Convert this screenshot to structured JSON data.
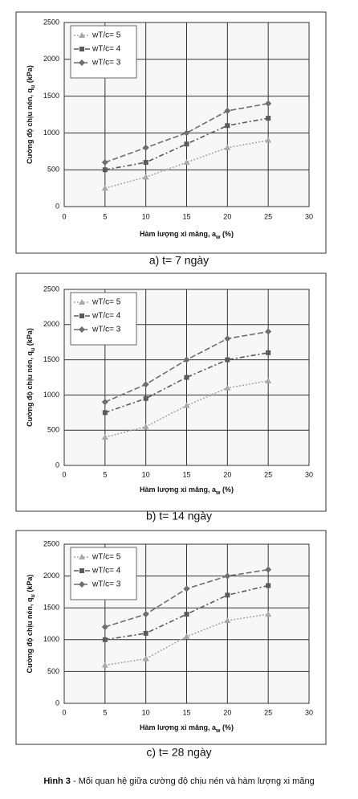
{
  "chart_data": [
    {
      "type": "line",
      "caption": "a) t= 7 ngày",
      "x_label": {
        "text": "Hàm lượng xi măng, a",
        "sub": "w",
        "suffix": " (%)"
      },
      "y_label": {
        "text": "Cường độ chịu nén, q",
        "sub": "u",
        "suffix": " (kPa)"
      },
      "x": [
        5,
        10,
        15,
        20,
        25
      ],
      "series": [
        {
          "name": "wT/c= 5",
          "color": "#a8a8a8",
          "values": [
            250,
            400,
            600,
            800,
            900
          ]
        },
        {
          "name": "wT/c= 4",
          "color": "#5a5a5a",
          "values": [
            500,
            600,
            850,
            1100,
            1200
          ]
        },
        {
          "name": "wT/c= 3",
          "color": "#6e6e6e",
          "values": [
            600,
            800,
            1000,
            1300,
            1400
          ]
        }
      ],
      "xlim": [
        0,
        30
      ],
      "xticks": [
        0,
        5,
        10,
        15,
        20,
        25,
        30
      ],
      "ylim": [
        0,
        2500
      ],
      "yticks": [
        0,
        500,
        1000,
        1500,
        2000,
        2500
      ],
      "grid": true,
      "legend": "upper left"
    },
    {
      "type": "line",
      "caption": "b) t= 14 ngày",
      "x_label": {
        "text": "Hàm lượng xi măng, a",
        "sub": "w",
        "suffix": " (%)"
      },
      "y_label": {
        "text": "Cường độ chịu nén, q",
        "sub": "u",
        "suffix": " (kPa)"
      },
      "x": [
        5,
        10,
        15,
        20,
        25
      ],
      "series": [
        {
          "name": "wT/c= 5",
          "color": "#a8a8a8",
          "values": [
            400,
            550,
            850,
            1100,
            1200
          ]
        },
        {
          "name": "wT/c= 4",
          "color": "#5a5a5a",
          "values": [
            750,
            950,
            1250,
            1500,
            1600
          ]
        },
        {
          "name": "wT/c= 3",
          "color": "#6e6e6e",
          "values": [
            900,
            1150,
            1500,
            1800,
            1900
          ]
        }
      ],
      "xlim": [
        0,
        30
      ],
      "xticks": [
        0,
        5,
        10,
        15,
        20,
        25,
        30
      ],
      "ylim": [
        0,
        2500
      ],
      "yticks": [
        0,
        500,
        1000,
        1500,
        2000,
        2500
      ],
      "grid": true,
      "legend": "upper left"
    },
    {
      "type": "line",
      "caption": "c) t= 28 ngày",
      "x_label": {
        "text": "Hàm lượng xi măng, a",
        "sub": "w",
        "suffix": " (%)"
      },
      "y_label": {
        "text": "Cường độ chịu nén, q",
        "sub": "u",
        "suffix": " (kPa)"
      },
      "x": [
        5,
        10,
        15,
        20,
        25
      ],
      "series": [
        {
          "name": "wT/c= 5",
          "color": "#a8a8a8",
          "values": [
            600,
            700,
            1050,
            1300,
            1400
          ]
        },
        {
          "name": "wT/c= 4",
          "color": "#5a5a5a",
          "values": [
            1000,
            1100,
            1400,
            1700,
            1850
          ]
        },
        {
          "name": "wT/c= 3",
          "color": "#6e6e6e",
          "values": [
            1200,
            1400,
            1800,
            2000,
            2100
          ]
        }
      ],
      "xlim": [
        0,
        30
      ],
      "xticks": [
        0,
        5,
        10,
        15,
        20,
        25,
        30
      ],
      "ylim": [
        0,
        2500
      ],
      "yticks": [
        0,
        500,
        1000,
        1500,
        2000,
        2500
      ],
      "grid": true,
      "legend": "upper left"
    }
  ],
  "figure_caption": {
    "label": "Hình 3",
    "text": " - Mối quan hệ giữa cường độ chịu nén và hàm lượng xi măng"
  }
}
